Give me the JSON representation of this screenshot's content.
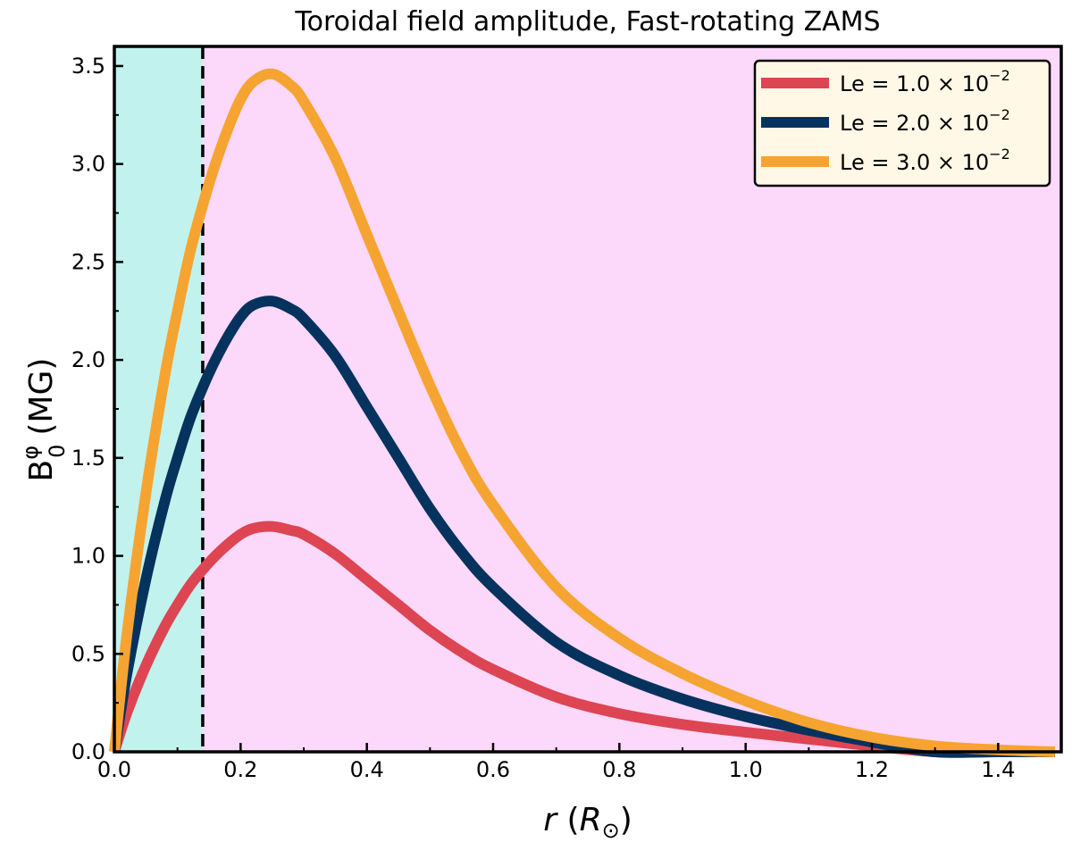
{
  "chart_data": {
    "type": "line",
    "title": "Toroidal field amplitude, Fast-rotating ZAMS",
    "xlabel": "r (R⊙)",
    "xlabel_var": "r",
    "xlabel_unit_open": " (",
    "xlabel_unit": "R",
    "xlabel_unit_sub": "⊙",
    "xlabel_unit_close": ")",
    "ylabel_base": "B",
    "ylabel_sup": "φ",
    "ylabel_sub": "0",
    "ylabel_unit": "(MG)",
    "xlim": [
      0.0,
      1.5
    ],
    "ylim": [
      0.0,
      3.6
    ],
    "xticks": [
      "0.0",
      "0.2",
      "0.4",
      "0.6",
      "0.8",
      "1.0",
      "1.2",
      "1.4"
    ],
    "xtick_values": [
      0.0,
      0.2,
      0.4,
      0.6,
      0.8,
      1.0,
      1.2,
      1.4
    ],
    "yticks": [
      "0.0",
      "0.5",
      "1.0",
      "1.5",
      "2.0",
      "2.5",
      "3.0",
      "3.5"
    ],
    "ytick_values": [
      0.0,
      0.5,
      1.0,
      1.5,
      2.0,
      2.5,
      3.0,
      3.5
    ],
    "grid": false,
    "legend_position": "top-right",
    "boundary_r": 0.14,
    "regions": [
      {
        "name": "inner",
        "from": 0.0,
        "to": 0.14,
        "color": "#c2f2ee"
      },
      {
        "name": "outer",
        "from": 0.14,
        "to": 1.5,
        "color": "#fcd8fa"
      }
    ],
    "x": [
      0.0,
      0.02,
      0.05,
      0.08,
      0.1,
      0.12,
      0.14,
      0.16,
      0.18,
      0.2,
      0.22,
      0.25,
      0.28,
      0.3,
      0.35,
      0.4,
      0.45,
      0.5,
      0.55,
      0.6,
      0.7,
      0.8,
      0.9,
      1.0,
      1.1,
      1.2,
      1.3,
      1.4,
      1.49
    ],
    "series": [
      {
        "name": "Le = 1.0 × 10^-2",
        "legend_prefix": "Le = 1.0 × 10",
        "legend_exp": "−2",
        "color": "#de4552",
        "values": [
          0.0,
          0.2,
          0.44,
          0.64,
          0.75,
          0.85,
          0.93,
          1.0,
          1.06,
          1.11,
          1.14,
          1.15,
          1.13,
          1.11,
          1.01,
          0.88,
          0.75,
          0.62,
          0.51,
          0.42,
          0.28,
          0.195,
          0.14,
          0.1,
          0.065,
          0.03,
          0.0,
          0.0,
          0.0
        ]
      },
      {
        "name": "Le = 2.0 × 10^-2",
        "legend_prefix": "Le = 2.0 × 10",
        "legend_exp": "−2",
        "color": "#06325e",
        "values": [
          0.0,
          0.4,
          0.88,
          1.28,
          1.5,
          1.7,
          1.86,
          2.0,
          2.12,
          2.22,
          2.28,
          2.3,
          2.26,
          2.21,
          2.02,
          1.76,
          1.5,
          1.24,
          1.02,
          0.84,
          0.56,
          0.39,
          0.27,
          0.18,
          0.11,
          0.05,
          0.0,
          0.0,
          0.0
        ]
      },
      {
        "name": "Le = 3.0 × 10^-2",
        "legend_prefix": "Le = 3.0 × 10",
        "legend_exp": "−2",
        "color": "#f6a431",
        "values": [
          0.0,
          0.6,
          1.32,
          1.92,
          2.25,
          2.55,
          2.79,
          3.0,
          3.18,
          3.33,
          3.42,
          3.46,
          3.4,
          3.32,
          3.03,
          2.64,
          2.25,
          1.87,
          1.53,
          1.26,
          0.84,
          0.58,
          0.4,
          0.26,
          0.15,
          0.075,
          0.03,
          0.01,
          0.0
        ]
      }
    ]
  }
}
